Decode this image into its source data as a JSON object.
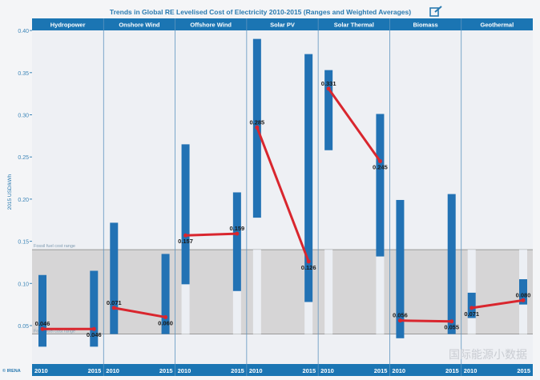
{
  "chart_data": {
    "type": "bar",
    "title": "Trends in Global RE Levelised Cost of Electricity 2010-2015 (Ranges and Weighted Averages)",
    "ylabel": "2015 USD/kWh",
    "ylim": [
      0,
      0.4
    ],
    "yticks": [
      "0.05",
      "0.10",
      "0.15",
      "0.20",
      "0.25",
      "0.30",
      "0.35",
      "0.40"
    ],
    "fossil_range": {
      "label_top": "Fossil fuel cost range",
      "label_bottom": "Fossil fuel cost range",
      "min": 0.04,
      "max": 0.14
    },
    "years": [
      "2010",
      "2015"
    ],
    "categories": [
      "Hydropower",
      "Onshore Wind",
      "Offshore Wind",
      "Solar PV",
      "Solar Thermal",
      "Biomass",
      "Geothermal"
    ],
    "ranges": [
      [
        [
          0.025,
          0.11
        ],
        [
          0.025,
          0.115
        ]
      ],
      [
        [
          0.04,
          0.172
        ],
        [
          0.04,
          0.135
        ]
      ],
      [
        [
          0.099,
          0.265
        ],
        [
          0.091,
          0.208
        ]
      ],
      [
        [
          0.178,
          0.39
        ],
        [
          0.078,
          0.372
        ]
      ],
      [
        [
          0.258,
          0.353
        ],
        [
          0.132,
          0.301
        ]
      ],
      [
        [
          0.035,
          0.199
        ],
        [
          0.04,
          0.206
        ]
      ],
      [
        [
          0.059,
          0.089
        ],
        [
          0.075,
          0.105
        ]
      ]
    ],
    "weighted_averages": [
      [
        "0.046",
        "0.046"
      ],
      [
        "0.071",
        "0.060"
      ],
      [
        "0.157",
        "0.159"
      ],
      [
        "0.285",
        "0.126"
      ],
      [
        "0.331",
        "0.245"
      ],
      [
        "0.056",
        "0.055"
      ],
      [
        "0.071",
        "0.080"
      ]
    ],
    "colors": {
      "range": "#2272b4",
      "average": "#d9262e",
      "header": "#1b75b3",
      "fossil": "#d6d5d6",
      "title": "#2a7ab0"
    }
  },
  "edit_icon": "pencil-square-icon",
  "credit": "© IRENA",
  "watermark": "国际能源小数据"
}
